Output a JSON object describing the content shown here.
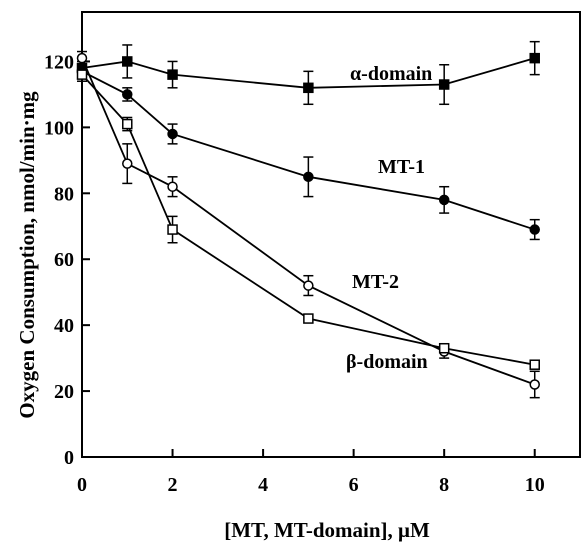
{
  "chart_data": {
    "type": "line",
    "title": "",
    "xlabel": "[MT, MT-domain], μM",
    "ylabel": "Oxygen Consumption, nmol/min·mg",
    "xlim": [
      0,
      11
    ],
    "ylim": [
      0,
      135
    ],
    "x_ticks": [
      0,
      2,
      4,
      6,
      8,
      10
    ],
    "x_tick_labels": [
      "0",
      "2",
      "4",
      "6",
      "8",
      "10"
    ],
    "y_ticks": [
      0,
      20,
      40,
      60,
      80,
      100,
      120
    ],
    "y_tick_labels": [
      "0",
      "20",
      "40",
      "60",
      "80",
      "100",
      "120"
    ],
    "grid": false,
    "legend": "inline labels",
    "series": [
      {
        "name": "α-domain",
        "marker": "filled-square",
        "color": "#000000",
        "x": [
          0,
          1,
          2,
          5,
          8,
          10
        ],
        "y": [
          118,
          120,
          116,
          112,
          113,
          121
        ],
        "error": [
          2,
          5,
          4,
          5,
          6,
          5
        ]
      },
      {
        "name": "MT-1",
        "marker": "filled-circle",
        "color": "#000000",
        "x": [
          0,
          1,
          2,
          5,
          8,
          10
        ],
        "y": [
          117,
          110,
          98,
          85,
          78,
          69
        ],
        "error": [
          2,
          2,
          3,
          6,
          4,
          3
        ]
      },
      {
        "name": "MT-2",
        "marker": "open-circle",
        "color": "#000000",
        "x": [
          0,
          1,
          2,
          5,
          8,
          10
        ],
        "y": [
          121,
          89,
          82,
          52,
          32,
          22
        ],
        "error": [
          2,
          6,
          3,
          3,
          2,
          4
        ]
      },
      {
        "name": "β-domain",
        "marker": "open-square",
        "color": "#000000",
        "x": [
          0,
          1,
          2,
          5,
          8,
          10
        ],
        "y": [
          116,
          101,
          69,
          42,
          33,
          28
        ],
        "error": [
          2,
          2,
          4,
          0,
          0,
          0
        ]
      }
    ]
  }
}
